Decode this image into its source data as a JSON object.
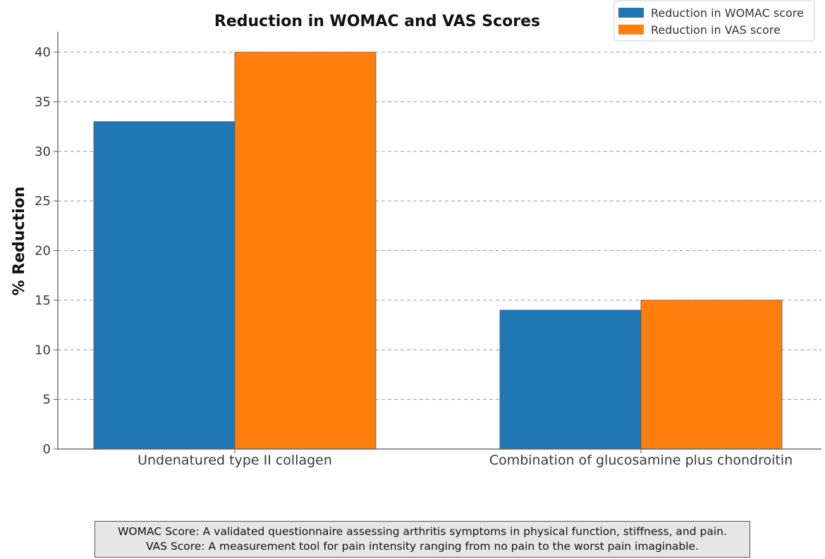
{
  "chart_data": {
    "type": "bar",
    "title": "Reduction in WOMAC and VAS Scores",
    "xlabel": "",
    "ylabel": "% Reduction",
    "categories": [
      "Undenatured type II collagen",
      "Combination of glucosamine plus chondroitin"
    ],
    "series": [
      {
        "name": "Reduction in WOMAC score",
        "values": [
          33,
          14
        ],
        "color": "#1f77b4"
      },
      {
        "name": "Reduction in VAS score",
        "values": [
          40,
          15
        ],
        "color": "#ff7f0e"
      }
    ],
    "ylim": [
      0,
      42
    ],
    "yticks": [
      0,
      5,
      10,
      15,
      20,
      25,
      30,
      35,
      40
    ],
    "grid": "horizontal dashed",
    "legend_position": "top-right"
  },
  "note": {
    "line1": "WOMAC Score: A validated questionnaire assessing arthritis symptoms in physical function, stiffness, and pain.",
    "line2": "VAS Score: A measurement tool for pain intensity ranging from no pain to the worst pain imaginable."
  }
}
